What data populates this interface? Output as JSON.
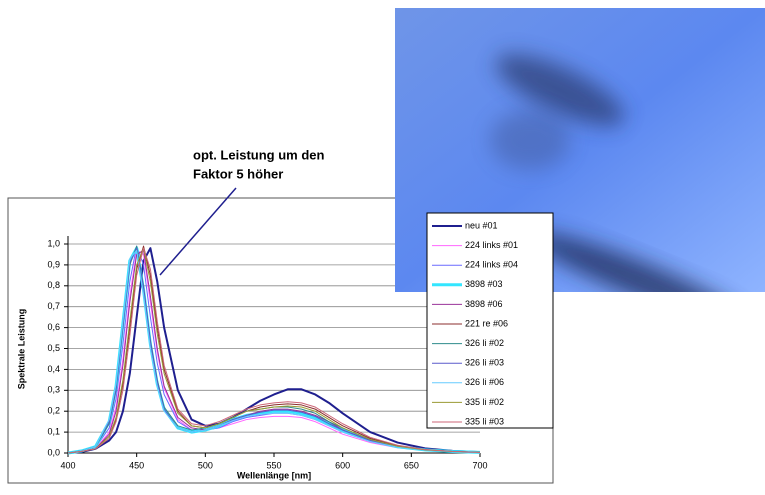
{
  "chart_data": {
    "type": "line",
    "annotations": [
      "opt. Leistung um den",
      "Faktor 5 höher"
    ],
    "xlabel": "Wellenlänge [nm]",
    "ylabel": "Spektrale Leistung",
    "xlim": [
      400,
      700
    ],
    "xticks": [
      400,
      450,
      500,
      550,
      600,
      650,
      700
    ],
    "ylim": [
      0,
      1
    ],
    "yticks": [
      {
        "value": 0,
        "label": "0,0"
      },
      {
        "value": 0.1,
        "label": "0,1"
      },
      {
        "value": 0.2,
        "label": "0,2"
      },
      {
        "value": 0.3,
        "label": "0,3"
      },
      {
        "value": 0.4,
        "label": "0,4"
      },
      {
        "value": 0.5,
        "label": "0,5"
      },
      {
        "value": 0.6,
        "label": "0,6"
      },
      {
        "value": 0.7,
        "label": "0,7"
      },
      {
        "value": 0.8,
        "label": "0,8"
      },
      {
        "value": 0.9,
        "label": "0,9"
      },
      {
        "value": 1,
        "label": "1,0"
      }
    ],
    "grid": true,
    "legend": "right",
    "x": [
      400,
      410,
      420,
      430,
      435,
      440,
      445,
      450,
      455,
      460,
      465,
      470,
      480,
      490,
      500,
      510,
      520,
      530,
      540,
      550,
      560,
      570,
      580,
      590,
      600,
      620,
      640,
      660,
      680,
      700
    ],
    "series": [
      {
        "name": "neu #01",
        "color": "#1f1f8f",
        "width": 2,
        "values": [
          0,
          0.005,
          0.02,
          0.06,
          0.1,
          0.2,
          0.38,
          0.65,
          0.92,
          0.98,
          0.82,
          0.6,
          0.3,
          0.16,
          0.13,
          0.14,
          0.17,
          0.21,
          0.25,
          0.28,
          0.305,
          0.305,
          0.28,
          0.24,
          0.19,
          0.1,
          0.05,
          0.022,
          0.01,
          0.004
        ]
      },
      {
        "name": "224 links #01",
        "color": "#ff66ff",
        "width": 1,
        "values": [
          0,
          0.01,
          0.02,
          0.1,
          0.22,
          0.45,
          0.75,
          0.97,
          0.95,
          0.72,
          0.48,
          0.31,
          0.16,
          0.11,
          0.11,
          0.12,
          0.14,
          0.16,
          0.17,
          0.175,
          0.175,
          0.17,
          0.15,
          0.12,
          0.09,
          0.05,
          0.025,
          0.012,
          0.005,
          0.002
        ]
      },
      {
        "name": "224 links #04",
        "color": "#6a6aff",
        "width": 1,
        "values": [
          0,
          0.01,
          0.025,
          0.12,
          0.26,
          0.52,
          0.82,
          0.99,
          0.9,
          0.65,
          0.43,
          0.28,
          0.15,
          0.11,
          0.11,
          0.12,
          0.15,
          0.17,
          0.18,
          0.19,
          0.19,
          0.18,
          0.16,
          0.13,
          0.1,
          0.055,
          0.027,
          0.013,
          0.006,
          0.002
        ]
      },
      {
        "name": "3898 #03",
        "color": "#33e6ff",
        "width": 3,
        "values": [
          0,
          0.01,
          0.03,
          0.15,
          0.32,
          0.62,
          0.92,
          0.98,
          0.78,
          0.52,
          0.33,
          0.21,
          0.12,
          0.1,
          0.11,
          0.13,
          0.16,
          0.18,
          0.19,
          0.2,
          0.2,
          0.19,
          0.17,
          0.14,
          0.11,
          0.06,
          0.03,
          0.015,
          0.007,
          0.003
        ]
      },
      {
        "name": "3898 #06",
        "color": "#993399",
        "width": 1,
        "values": [
          0,
          0.01,
          0.02,
          0.09,
          0.2,
          0.42,
          0.72,
          0.95,
          0.97,
          0.75,
          0.5,
          0.32,
          0.17,
          0.12,
          0.11,
          0.13,
          0.16,
          0.18,
          0.2,
          0.21,
          0.21,
          0.2,
          0.18,
          0.15,
          0.11,
          0.06,
          0.03,
          0.014,
          0.006,
          0.002
        ]
      },
      {
        "name": "221 re #06",
        "color": "#8b2d2d",
        "width": 1,
        "values": [
          0,
          0.008,
          0.02,
          0.08,
          0.16,
          0.33,
          0.6,
          0.88,
          0.99,
          0.85,
          0.6,
          0.4,
          0.2,
          0.13,
          0.12,
          0.14,
          0.17,
          0.2,
          0.22,
          0.23,
          0.235,
          0.23,
          0.21,
          0.17,
          0.13,
          0.07,
          0.035,
          0.016,
          0.007,
          0.003
        ]
      },
      {
        "name": "326 li #02",
        "color": "#2e8b8b",
        "width": 1,
        "values": [
          0,
          0.01,
          0.03,
          0.14,
          0.3,
          0.6,
          0.9,
          0.99,
          0.8,
          0.54,
          0.35,
          0.22,
          0.13,
          0.11,
          0.12,
          0.14,
          0.17,
          0.2,
          0.21,
          0.22,
          0.22,
          0.21,
          0.19,
          0.15,
          0.12,
          0.065,
          0.032,
          0.015,
          0.007,
          0.003
        ]
      },
      {
        "name": "326 li #03",
        "color": "#5a5acc",
        "width": 1,
        "values": [
          0,
          0.01,
          0.03,
          0.15,
          0.31,
          0.61,
          0.91,
          0.98,
          0.79,
          0.53,
          0.34,
          0.21,
          0.12,
          0.1,
          0.11,
          0.13,
          0.16,
          0.18,
          0.195,
          0.205,
          0.205,
          0.195,
          0.175,
          0.14,
          0.11,
          0.06,
          0.03,
          0.015,
          0.007,
          0.003
        ]
      },
      {
        "name": "326 li #06",
        "color": "#66ccff",
        "width": 1,
        "values": [
          0,
          0.01,
          0.03,
          0.16,
          0.33,
          0.63,
          0.93,
          0.97,
          0.76,
          0.5,
          0.32,
          0.2,
          0.12,
          0.1,
          0.11,
          0.13,
          0.155,
          0.175,
          0.185,
          0.19,
          0.19,
          0.18,
          0.16,
          0.13,
          0.1,
          0.055,
          0.028,
          0.013,
          0.006,
          0.002
        ]
      },
      {
        "name": "335 li #02",
        "color": "#999933",
        "width": 1,
        "values": [
          0,
          0.008,
          0.02,
          0.08,
          0.17,
          0.35,
          0.63,
          0.9,
          0.98,
          0.82,
          0.57,
          0.38,
          0.19,
          0.13,
          0.12,
          0.14,
          0.17,
          0.2,
          0.21,
          0.22,
          0.225,
          0.22,
          0.2,
          0.16,
          0.12,
          0.065,
          0.032,
          0.015,
          0.007,
          0.003
        ]
      },
      {
        "name": "335 li #03",
        "color": "#cc6677",
        "width": 1,
        "values": [
          0,
          0.008,
          0.02,
          0.07,
          0.15,
          0.3,
          0.56,
          0.85,
          0.98,
          0.88,
          0.63,
          0.42,
          0.21,
          0.14,
          0.13,
          0.15,
          0.18,
          0.21,
          0.23,
          0.24,
          0.245,
          0.24,
          0.22,
          0.18,
          0.14,
          0.075,
          0.037,
          0.017,
          0.008,
          0.003
        ]
      }
    ]
  }
}
